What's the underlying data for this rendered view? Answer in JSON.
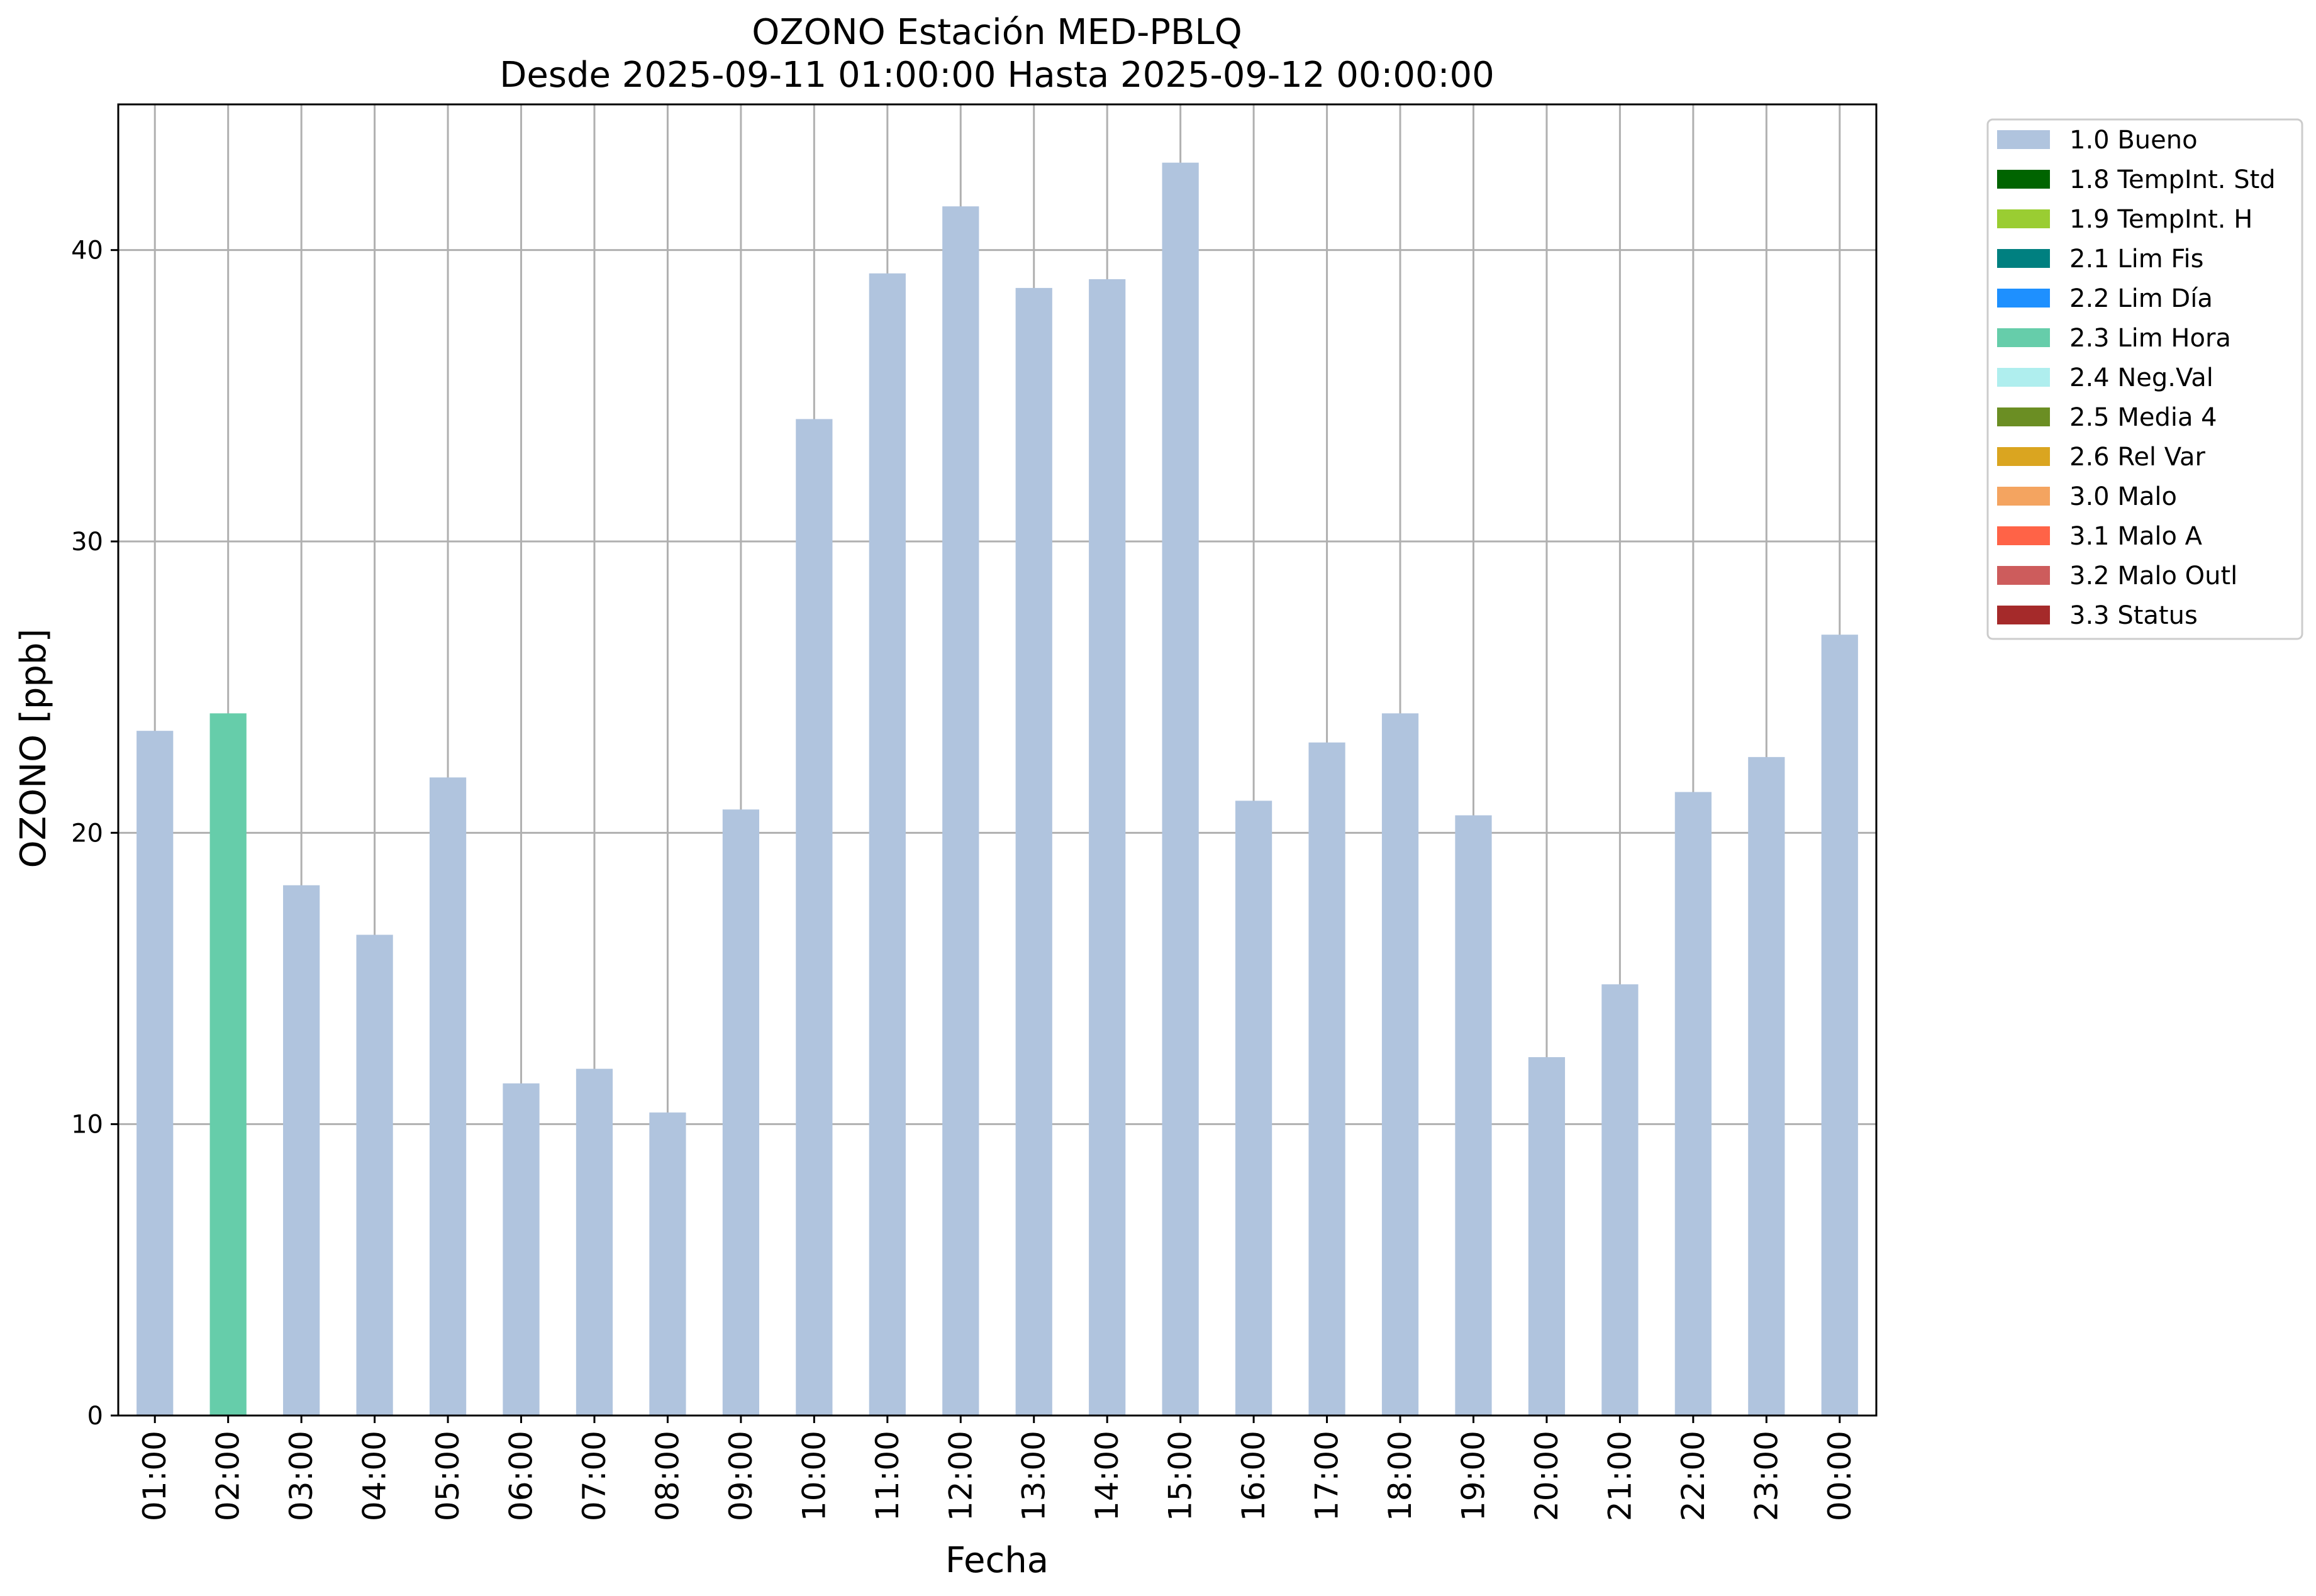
{
  "chart_data": {
    "type": "bar",
    "title": "OZONO Estación MED-PBLQ",
    "subtitle": "Desde 2025-09-11 01:00:00 Hasta 2025-09-12 00:00:00",
    "xlabel": "Fecha",
    "ylabel": "OZONO [ppb]",
    "ylim": [
      0,
      45
    ],
    "yticks": [
      0,
      10,
      20,
      30,
      40
    ],
    "grid": true,
    "legend_position": "outside-top-right",
    "categories": [
      "01:00",
      "02:00",
      "03:00",
      "04:00",
      "05:00",
      "06:00",
      "07:00",
      "08:00",
      "09:00",
      "10:00",
      "11:00",
      "12:00",
      "13:00",
      "14:00",
      "15:00",
      "16:00",
      "17:00",
      "18:00",
      "19:00",
      "20:00",
      "21:00",
      "22:00",
      "23:00",
      "00:00"
    ],
    "values": [
      23.5,
      24.1,
      18.2,
      16.5,
      21.9,
      11.4,
      11.9,
      10.4,
      20.8,
      34.2,
      39.2,
      41.5,
      38.7,
      39.0,
      43.0,
      21.1,
      23.1,
      24.1,
      20.6,
      12.3,
      14.8,
      21.4,
      22.6,
      26.8
    ],
    "flags": [
      "1.0 Bueno",
      "2.3 Lim Hora",
      "1.0 Bueno",
      "1.0 Bueno",
      "1.0 Bueno",
      "1.0 Bueno",
      "1.0 Bueno",
      "1.0 Bueno",
      "1.0 Bueno",
      "1.0 Bueno",
      "1.0 Bueno",
      "1.0 Bueno",
      "1.0 Bueno",
      "1.0 Bueno",
      "1.0 Bueno",
      "1.0 Bueno",
      "1.0 Bueno",
      "1.0 Bueno",
      "1.0 Bueno",
      "1.0 Bueno",
      "1.0 Bueno",
      "1.0 Bueno",
      "1.0 Bueno",
      "1.0 Bueno"
    ],
    "legend": [
      {
        "label": "1.0 Bueno",
        "color": "#b0c4de"
      },
      {
        "label": "1.8 TempInt. Std",
        "color": "#006400"
      },
      {
        "label": "1.9 TempInt. H",
        "color": "#9acd32"
      },
      {
        "label": "2.1 Lim Fis",
        "color": "#008080"
      },
      {
        "label": "2.2 Lim Día",
        "color": "#1e90ff"
      },
      {
        "label": "2.3 Lim Hora",
        "color": "#66cdaa"
      },
      {
        "label": "2.4 Neg.Val",
        "color": "#afeeee"
      },
      {
        "label": "2.5 Media 4",
        "color": "#6b8e23"
      },
      {
        "label": "2.6 Rel Var",
        "color": "#daa520"
      },
      {
        "label": "3.0 Malo",
        "color": "#f4a460"
      },
      {
        "label": "3.1 Malo A",
        "color": "#ff6347"
      },
      {
        "label": "3.2 Malo Outl",
        "color": "#cd5c5c"
      },
      {
        "label": "3.3 Status",
        "color": "#a52a2a"
      }
    ]
  }
}
